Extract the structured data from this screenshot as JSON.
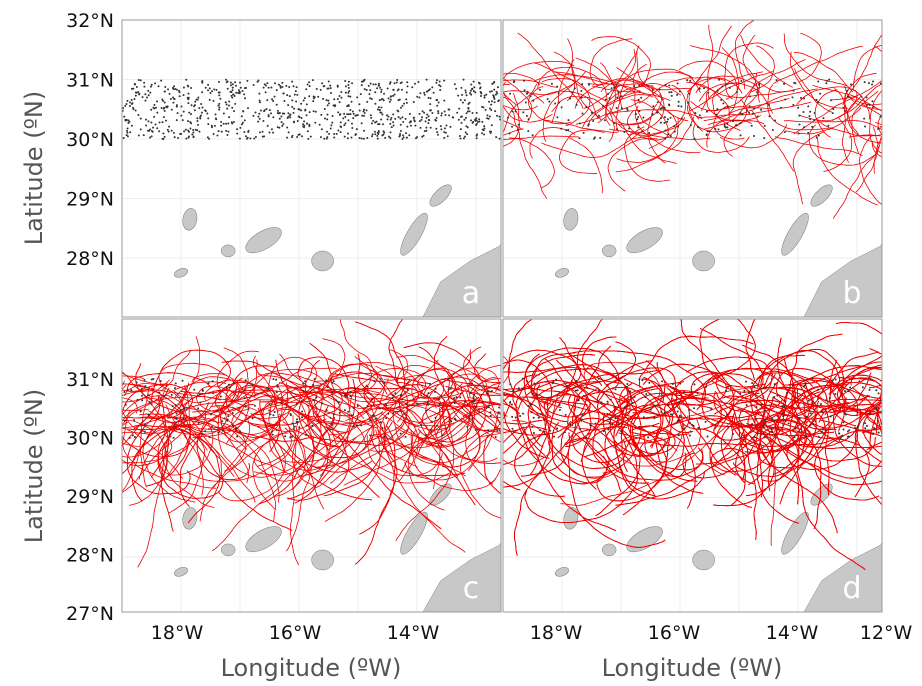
{
  "panels": [
    {
      "label": "a"
    },
    {
      "label": "b"
    },
    {
      "label": "c"
    },
    {
      "label": "d"
    }
  ],
  "y_axes": [
    {
      "title": "Latitude (ºN)",
      "ticks": [
        "32°N",
        "31°N",
        "30°N",
        "29°N",
        "28°N"
      ]
    },
    {
      "title": "Latitude (ºN)",
      "ticks": [
        "31°N",
        "30°N",
        "29°N",
        "28°N",
        "27°N"
      ]
    }
  ],
  "x_axes": [
    {
      "title": "Longitude (ºW)",
      "ticks": [
        "18°W",
        "16°W",
        "14°W"
      ]
    },
    {
      "title": "Longitude (ºW)",
      "ticks": [
        "18°W",
        "16°W",
        "14°W",
        "12°W"
      ]
    }
  ]
}
